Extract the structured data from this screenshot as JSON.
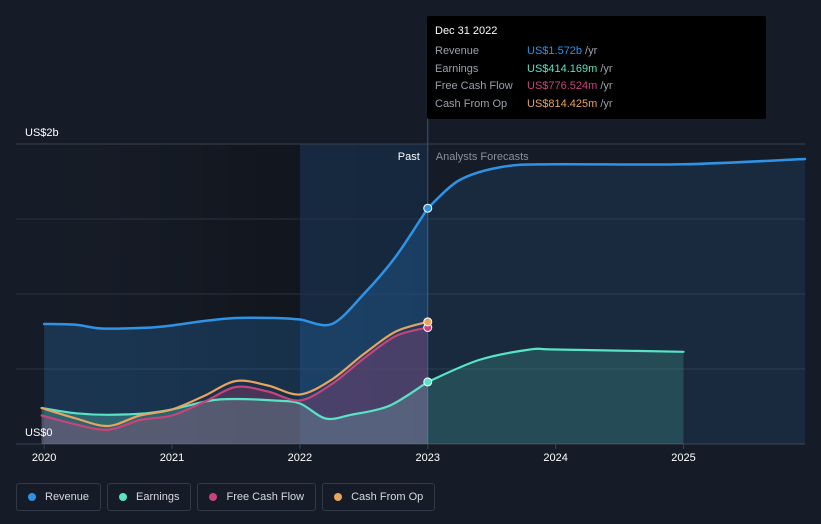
{
  "chart_data": {
    "type": "line",
    "title": "",
    "xlabel": "",
    "ylabel": "",
    "y_axis_labels": {
      "top": "US$2b",
      "bottom": "US$0"
    },
    "ylim": [
      0,
      2000
    ],
    "xlim": [
      2019.78,
      2025.95
    ],
    "x_ticks": [
      "2020",
      "2021",
      "2022",
      "2023",
      "2024",
      "2025"
    ],
    "x_tick_values": [
      2020,
      2021,
      2022,
      2023,
      2024,
      2025
    ],
    "divider_x": 2023.0,
    "past_label": "Past",
    "forecast_label": "Analysts Forecasts",
    "grid": true,
    "legend_position": "bottom-left",
    "series": [
      {
        "name": "Revenue",
        "color": "#2e93e6",
        "area": true,
        "values_past": [
          [
            2020,
            800
          ],
          [
            2020.25,
            795
          ],
          [
            2020.45,
            770
          ],
          [
            2020.8,
            775
          ],
          [
            2021.0,
            790
          ],
          [
            2021.25,
            820
          ],
          [
            2021.5,
            840
          ],
          [
            2021.8,
            840
          ],
          [
            2022.0,
            830
          ],
          [
            2022.25,
            800
          ],
          [
            2022.5,
            1000
          ],
          [
            2022.75,
            1250
          ],
          [
            2023.0,
            1572
          ]
        ],
        "values_forecast": [
          [
            2023.0,
            1572
          ],
          [
            2023.25,
            1760
          ],
          [
            2023.6,
            1850
          ],
          [
            2024.0,
            1865
          ],
          [
            2025.0,
            1865
          ],
          [
            2025.95,
            1900
          ]
        ]
      },
      {
        "name": "Earnings",
        "color": "#58e3c6",
        "area": true,
        "values_past": [
          [
            2019.98,
            240
          ],
          [
            2020.25,
            205
          ],
          [
            2020.5,
            195
          ],
          [
            2020.8,
            205
          ],
          [
            2021.0,
            230
          ],
          [
            2021.3,
            290
          ],
          [
            2021.5,
            300
          ],
          [
            2021.8,
            290
          ],
          [
            2022.0,
            270
          ],
          [
            2022.2,
            170
          ],
          [
            2022.4,
            195
          ],
          [
            2022.7,
            255
          ],
          [
            2023.0,
            414
          ]
        ],
        "values_forecast": [
          [
            2023.0,
            414
          ],
          [
            2023.4,
            560
          ],
          [
            2023.8,
            630
          ],
          [
            2024.0,
            630
          ],
          [
            2025.0,
            615
          ]
        ]
      },
      {
        "name": "Free Cash Flow",
        "color": "#c6447b",
        "area": true,
        "values_past": [
          [
            2019.98,
            190
          ],
          [
            2020.25,
            130
          ],
          [
            2020.5,
            95
          ],
          [
            2020.75,
            160
          ],
          [
            2021.0,
            190
          ],
          [
            2021.25,
            280
          ],
          [
            2021.5,
            380
          ],
          [
            2021.75,
            350
          ],
          [
            2022.0,
            290
          ],
          [
            2022.25,
            400
          ],
          [
            2022.5,
            570
          ],
          [
            2022.75,
            720
          ],
          [
            2023.0,
            776.5
          ]
        ],
        "values_forecast": []
      },
      {
        "name": "Cash From Op",
        "color": "#e8a35f",
        "area": false,
        "values_past": [
          [
            2019.98,
            240
          ],
          [
            2020.25,
            170
          ],
          [
            2020.5,
            120
          ],
          [
            2020.75,
            190
          ],
          [
            2021.0,
            230
          ],
          [
            2021.25,
            320
          ],
          [
            2021.5,
            420
          ],
          [
            2021.75,
            390
          ],
          [
            2022.0,
            330
          ],
          [
            2022.25,
            430
          ],
          [
            2022.5,
            600
          ],
          [
            2022.75,
            750
          ],
          [
            2023.0,
            814.4
          ]
        ],
        "values_forecast": []
      }
    ]
  },
  "tooltip": {
    "date": "Dec 31 2022",
    "rows": [
      {
        "name": "Revenue",
        "value": "US$1.572b",
        "unit": "/yr",
        "color": "#2e93e6"
      },
      {
        "name": "Earnings",
        "value": "US$414.169m",
        "unit": "/yr",
        "color": "#58e3c6"
      },
      {
        "name": "Free Cash Flow",
        "value": "US$776.524m",
        "unit": "/yr",
        "color": "#c6447b"
      },
      {
        "name": "Cash From Op",
        "value": "US$814.425m",
        "unit": "/yr",
        "color": "#e8a35f"
      }
    ]
  },
  "legend": [
    {
      "label": "Revenue",
      "color": "#2e93e6"
    },
    {
      "label": "Earnings",
      "color": "#58e3c6"
    },
    {
      "label": "Free Cash Flow",
      "color": "#c6447b"
    },
    {
      "label": "Cash From Op",
      "color": "#e8a35f"
    }
  ]
}
